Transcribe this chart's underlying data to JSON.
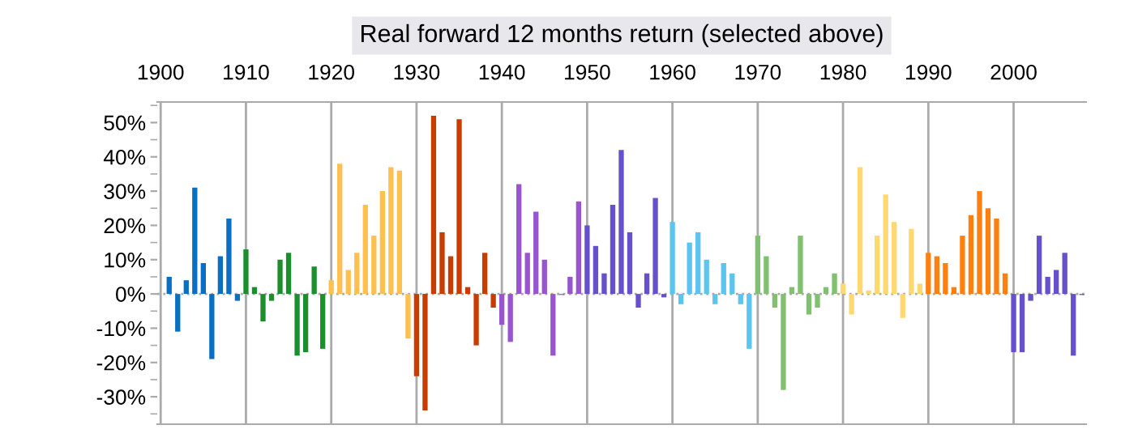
{
  "chart_data": {
    "type": "bar",
    "title": "Real forward 12 months return (selected above)",
    "x": [
      1901,
      1902,
      1903,
      1904,
      1905,
      1906,
      1907,
      1908,
      1909,
      1910,
      1911,
      1912,
      1913,
      1914,
      1915,
      1916,
      1917,
      1918,
      1919,
      1920,
      1921,
      1922,
      1923,
      1924,
      1925,
      1926,
      1927,
      1928,
      1929,
      1930,
      1931,
      1932,
      1933,
      1934,
      1935,
      1936,
      1937,
      1938,
      1939,
      1940,
      1941,
      1942,
      1943,
      1944,
      1945,
      1946,
      1947,
      1948,
      1949,
      1950,
      1951,
      1952,
      1953,
      1954,
      1955,
      1956,
      1957,
      1958,
      1959,
      1960,
      1961,
      1962,
      1963,
      1964,
      1965,
      1966,
      1967,
      1968,
      1969,
      1970,
      1971,
      1972,
      1973,
      1974,
      1975,
      1976,
      1977,
      1978,
      1979,
      1980,
      1981,
      1982,
      1983,
      1984,
      1985,
      1986,
      1987,
      1988,
      1989,
      1990,
      1991,
      1992,
      1993,
      1994,
      1995,
      1996,
      1997,
      1998,
      1999,
      2000,
      2001,
      2002,
      2003,
      2004,
      2005,
      2006,
      2007,
      2008
    ],
    "values": [
      5,
      -11,
      4,
      31,
      9,
      -19,
      11,
      22,
      -2,
      13,
      2,
      -8,
      -2,
      10,
      12,
      -18,
      -17,
      8,
      -16,
      4,
      38,
      7,
      12,
      26,
      17,
      30,
      37,
      36,
      -13,
      -24,
      -34,
      52,
      18,
      11,
      51,
      2,
      -15,
      12,
      -4,
      -9,
      -14,
      32,
      12,
      24,
      10,
      -18,
      -0.3,
      5,
      27,
      20,
      14,
      6,
      26,
      42,
      18,
      -4,
      6,
      28,
      -1,
      21,
      -3,
      15,
      18,
      10,
      -3,
      9,
      6,
      -3,
      -16,
      17,
      11,
      -4,
      -28,
      2,
      17,
      -6,
      -4,
      2,
      6,
      3,
      -6,
      37,
      1,
      17,
      29,
      21,
      -7,
      19,
      3,
      12,
      11,
      9,
      2,
      17,
      23,
      30,
      25,
      22,
      6,
      -17,
      -17,
      -2,
      17,
      5,
      7,
      12,
      -18,
      -0.3
    ],
    "colors": [
      "#0a6fc2",
      "#0a6fc2",
      "#0a6fc2",
      "#0a6fc2",
      "#0a6fc2",
      "#0a6fc2",
      "#0a6fc2",
      "#0a6fc2",
      "#0a6fc2",
      "#1a8f2c",
      "#1a8f2c",
      "#1a8f2c",
      "#1a8f2c",
      "#1a8f2c",
      "#1a8f2c",
      "#1a8f2c",
      "#1a8f2c",
      "#1a8f2c",
      "#1a8f2c",
      "#ffc050",
      "#ffc050",
      "#ffc050",
      "#ffc050",
      "#ffc050",
      "#ffc050",
      "#ffc050",
      "#ffc050",
      "#ffc050",
      "#ffc050",
      "#c83c00",
      "#c83c00",
      "#c83c00",
      "#c83c00",
      "#c83c00",
      "#c83c00",
      "#c83c00",
      "#c83c00",
      "#c83c00",
      "#c83c00",
      "#9955d0",
      "#9955d0",
      "#9955d0",
      "#9955d0",
      "#9955d0",
      "#9955d0",
      "#9955d0",
      "#9955d0",
      "#9955d0",
      "#9955d0",
      "#6650cc",
      "#6650cc",
      "#6650cc",
      "#6650cc",
      "#6650cc",
      "#6650cc",
      "#6650cc",
      "#6650cc",
      "#6650cc",
      "#6650cc",
      "#5bc5f0",
      "#5bc5f0",
      "#5bc5f0",
      "#5bc5f0",
      "#5bc5f0",
      "#5bc5f0",
      "#5bc5f0",
      "#5bc5f0",
      "#5bc5f0",
      "#5bc5f0",
      "#80c070",
      "#80c070",
      "#80c070",
      "#80c070",
      "#80c070",
      "#80c070",
      "#80c070",
      "#80c070",
      "#80c070",
      "#80c070",
      "#ffd870",
      "#ffd870",
      "#ffd870",
      "#ffd870",
      "#ffd870",
      "#ffd870",
      "#ffd870",
      "#ffd870",
      "#ffd870",
      "#ffd870",
      "#ff8010",
      "#ff8010",
      "#ff8010",
      "#ff8010",
      "#ff8010",
      "#ff8010",
      "#ff8010",
      "#ff8010",
      "#ff8010",
      "#ff8010",
      "#6650cc",
      "#6650cc",
      "#6650cc",
      "#6650cc",
      "#6650cc",
      "#6650cc",
      "#6650cc",
      "#6650cc",
      "#6650cc"
    ],
    "xlim": [
      1899.6,
      2008.5
    ],
    "xticks": [
      1900,
      1910,
      1920,
      1930,
      1940,
      1950,
      1960,
      1970,
      1980,
      1990,
      2000
    ],
    "ylim": [
      -38,
      56
    ],
    "yticks": [
      {
        "value": -30,
        "label": "-30%"
      },
      {
        "value": -20,
        "label": "-20%"
      },
      {
        "value": -10,
        "label": "-10%"
      },
      {
        "value": 0,
        "label": "0%"
      },
      {
        "value": 10,
        "label": "10%"
      },
      {
        "value": 20,
        "label": "20%"
      },
      {
        "value": 30,
        "label": "30%"
      },
      {
        "value": 40,
        "label": "40%"
      },
      {
        "value": 50,
        "label": "50%"
      }
    ],
    "ref_lines": [
      {
        "axis": "y",
        "value": 0,
        "color": "#aaaaaa",
        "line_style": "dotted"
      }
    ],
    "grid": "x",
    "legend": false
  }
}
